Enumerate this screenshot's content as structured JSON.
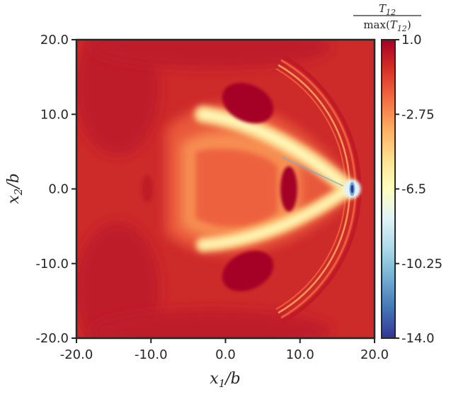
{
  "chart_data": {
    "type": "heatmap",
    "title": "",
    "xlabel": "x₁/b",
    "ylabel": "x₂/b",
    "xlim": [
      -20.0,
      20.0
    ],
    "ylim": [
      -20.0,
      20.0
    ],
    "x_ticks": [
      "-20.0",
      "-10.0",
      "0.0",
      "10.0",
      "20.0"
    ],
    "y_ticks": [
      "20.0",
      "10.0",
      "0.0",
      "-10.0",
      "-20.0"
    ],
    "colorbar": {
      "label_numerator": "T₁₂",
      "label_denominator": "max(T₁₂)",
      "range": [
        -14.0,
        1.0
      ],
      "ticks": [
        "1.0",
        "-2.75",
        "-6.5",
        "-10.25",
        "-14.0"
      ],
      "colormap": "RdYlBu_r",
      "colors": [
        "#313695",
        "#4575b4",
        "#74add1",
        "#abd9e9",
        "#e0f3f8",
        "#ffffbf",
        "#fee090",
        "#fdae61",
        "#f46d43",
        "#d73027",
        "#a50026"
      ]
    },
    "field": {
      "background_value": 0.55,
      "background_color": "#cd2a2a",
      "features": [
        {
          "kind": "bow_shock_arc",
          "center": [
            -2.5,
            0.0
          ],
          "radius": 20.5,
          "angle_deg": 60,
          "value": -0.3
        },
        {
          "kind": "wake_branches_upper",
          "from": [
            16.5,
            0.0
          ],
          "to": [
            -3.0,
            10.0
          ],
          "value": -4.5
        },
        {
          "kind": "wake_branches_lower",
          "from": [
            16.5,
            0.0
          ],
          "to": [
            -3.0,
            -7.5
          ],
          "value": -4.5
        },
        {
          "kind": "minimum_near_tip",
          "at": [
            17.0,
            0.0
          ],
          "value": -14.0
        },
        {
          "kind": "dark_lobe_upper",
          "at": [
            3.0,
            11.5
          ],
          "value": 1.0
        },
        {
          "kind": "dark_lobe_lower",
          "at": [
            3.0,
            -11.0
          ],
          "value": 1.0
        },
        {
          "kind": "dark_lobe_center",
          "at": [
            8.5,
            0.0
          ],
          "value": 1.0
        }
      ]
    }
  }
}
